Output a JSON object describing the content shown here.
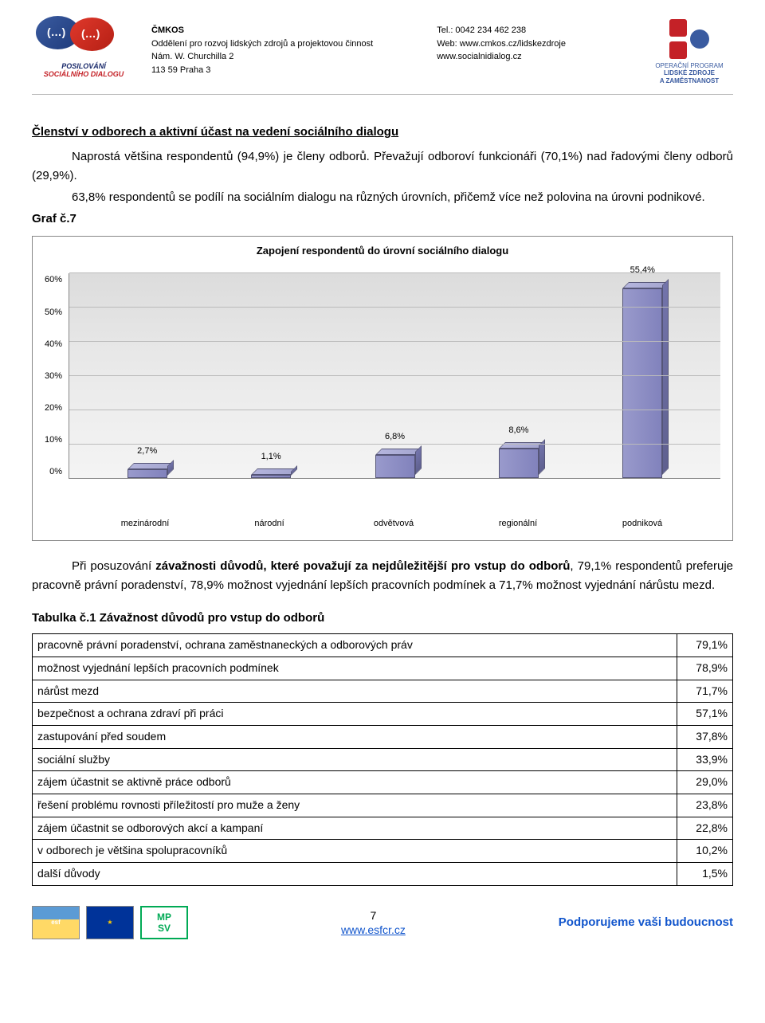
{
  "header": {
    "org_name": "ČMKOS",
    "org_dept": "Oddělení pro rozvoj lidských zdrojů a projektovou činnost",
    "org_addr1": "Nám. W. Churchilla 2",
    "org_addr2": "113 59 Praha 3",
    "tel": "Tel.: 0042 234 462 238",
    "web1": "Web: www.cmkos.cz/lidskezdroje",
    "web2": "www.socialnidialog.cz",
    "logo_left_line1": "POSILOVÁNÍ",
    "logo_left_line2": "SOCIÁLNÍHO DIALOGU",
    "logo_right_l1": "OPERAČNÍ PROGRAM",
    "logo_right_l2": "LIDSKÉ ZDROJE",
    "logo_right_l3": "A ZAMĚSTNANOST"
  },
  "section_title": "Členství v odborech  a aktivní účast na vedení sociálního dialogu",
  "p1": "Naprostá většina respondentů (94,9%) je členy odborů. Převažují odboroví funkcionáři (70,1%) nad řadovými členy odborů (29,9%).",
  "p2": "63,8% respondentů se podílí na sociálním dialogu na různých úrovních, přičemž více než polovina na úrovni podnikové.",
  "graf_label": "Graf č.7",
  "chart": {
    "title": "Zapojení respondentů do úrovní sociálního dialogu",
    "ylim": [
      0,
      60
    ],
    "ytick_step": 10,
    "y_labels": [
      "60%",
      "50%",
      "40%",
      "30%",
      "20%",
      "10%",
      "0%"
    ],
    "categories": [
      "mezinárodní",
      "národní",
      "odvětvová",
      "regionální",
      "podniková"
    ],
    "values": [
      2.7,
      1.1,
      6.8,
      8.6,
      55.4
    ],
    "value_labels": [
      "2,7%",
      "1,1%",
      "6,8%",
      "8,6%",
      "55,4%"
    ],
    "bar_color": "#9999cc",
    "bar_color_dark": "#7374ab",
    "bar_color_top": "#b4b5dd",
    "grid_color": "#bbbbbb",
    "bg_gradient_from": "#f4f4f4",
    "bg_gradient_to": "#dcdcdc"
  },
  "p3_pre": "Při posuzování ",
  "p3_bold": "závažnosti důvodů, které považují za nejdůležitější pro vstup do odborů",
  "p3_post": ", 79,1% respondentů preferuje pracovně právní poradenství, 78,9% možnost vyjednání lepších pracovních podmínek a 71,7% možnost vyjednání nárůstu mezd.",
  "table_title_pre": "Tabulka č.1 ",
  "table_title_bold": "Závažnost důvodů pro vstup do odborů",
  "table": {
    "rows": [
      [
        "pracovně právní poradenství, ochrana zaměstnaneckých a odborových práv",
        "79,1%"
      ],
      [
        "možnost vyjednání lepších pracovních podmínek",
        "78,9%"
      ],
      [
        "nárůst mezd",
        "71,7%"
      ],
      [
        "bezpečnost a ochrana zdraví při práci",
        "57,1%"
      ],
      [
        "zastupování před soudem",
        "37,8%"
      ],
      [
        "sociální služby",
        "33,9%"
      ],
      [
        "zájem účastnit se aktivně práce odborů",
        "29,0%"
      ],
      [
        "řešení problému rovnosti příležitostí pro muže a ženy",
        "23,8%"
      ],
      [
        "zájem účastnit se odborových akcí a kampaní",
        "22,8%"
      ],
      [
        "v odborech je většina spolupracovníků",
        "10,2%"
      ],
      [
        "další důvody",
        "1,5%"
      ]
    ]
  },
  "footer": {
    "page_num": "7",
    "link": "www.esfcr.cz",
    "slogan": "Podporujeme vaši budoucnost",
    "logo_esf": "esf",
    "logo_eu": "★",
    "logo_mp": "MP\nSV"
  }
}
